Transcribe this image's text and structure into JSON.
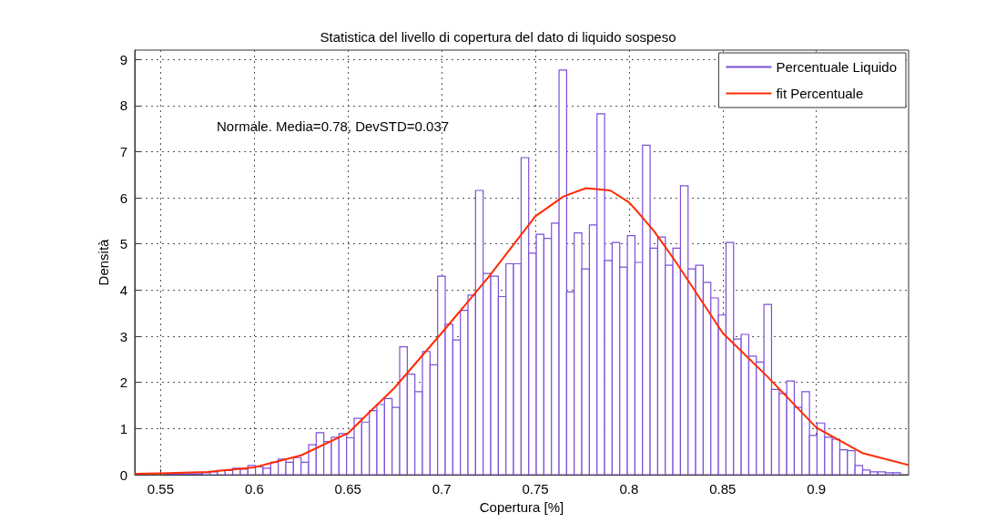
{
  "chart_data": {
    "type": "histogram",
    "title": "Statistica del livello di copertura del dato di liquido sospeso",
    "xlabel": "Copertura [%]",
    "ylabel": "Densità",
    "annotations": [
      "Normale. Media=0.78, DevSTD=0.037"
    ],
    "xlim": [
      0.5362,
      0.9492
    ],
    "ylim": [
      0,
      9.2
    ],
    "xticks": [
      0.55,
      0.6,
      0.65,
      0.7,
      0.75,
      0.8,
      0.85,
      0.9
    ],
    "yticks": [
      0,
      1,
      2,
      3,
      4,
      5,
      6,
      7,
      8,
      9
    ],
    "grid": true,
    "legend": "top right",
    "series": [
      {
        "name": "Percentuale Liquido",
        "color": "#7d4fd6",
        "bins": [
          0.5399,
          0.54395,
          0.548,
          0.55205,
          0.5561,
          0.56015,
          0.5642,
          0.56825,
          0.5723,
          0.57635,
          0.5804,
          0.58445,
          0.5885,
          0.59255,
          0.5966,
          0.60065,
          0.6047,
          0.60875,
          0.6128,
          0.61685,
          0.6209,
          0.62495,
          0.629,
          0.63305,
          0.6371,
          0.64115,
          0.6452,
          0.64925,
          0.6533,
          0.65735,
          0.6614,
          0.66545,
          0.6695,
          0.67355,
          0.6776,
          0.68165,
          0.6857,
          0.68975,
          0.6938,
          0.69785,
          0.7019,
          0.70595,
          0.71,
          0.71405,
          0.7181,
          0.72215,
          0.7262,
          0.73025,
          0.7343,
          0.73835,
          0.7424,
          0.74645,
          0.7505,
          0.75455,
          0.7586,
          0.76265,
          0.7667,
          0.77075,
          0.7748,
          0.77885,
          0.7829,
          0.78695,
          0.791,
          0.79505,
          0.7991,
          0.80315,
          0.8072,
          0.81125,
          0.8153,
          0.81935,
          0.8234,
          0.82745,
          0.8315,
          0.83555,
          0.8396,
          0.84365,
          0.8477,
          0.85175,
          0.8558,
          0.85985,
          0.8639,
          0.86795,
          0.872,
          0.87605,
          0.8801,
          0.88415,
          0.8882,
          0.89225,
          0.8963,
          0.90035,
          0.9044,
          0.90845,
          0.9125,
          0.91655,
          0.9206,
          0.92465,
          0.9287,
          0.93275,
          0.9368,
          0.94085,
          0.9449
        ],
        "values": [
          null,
          null,
          null,
          0.01,
          0.01,
          0.02,
          0.02,
          0.02,
          0.04,
          0.06,
          0.09,
          0.09,
          0.14,
          0.12,
          0.2,
          0.17,
          0.14,
          0.27,
          0.34,
          0.27,
          0.37,
          0.27,
          0.65,
          0.91,
          0.72,
          0.81,
          0.89,
          0.8,
          1.22,
          1.14,
          1.39,
          1.52,
          1.65,
          1.46,
          2.77,
          2.18,
          1.8,
          2.67,
          2.38,
          4.3,
          3.26,
          2.92,
          3.56,
          3.89,
          6.16,
          4.36,
          4.3,
          3.86,
          4.57,
          4.57,
          6.87,
          4.8,
          5.21,
          5.12,
          5.45,
          8.77,
          3.96,
          5.24,
          4.46,
          5.41,
          7.82,
          4.64,
          5.03,
          4.5,
          5.18,
          4.6,
          7.14,
          4.91,
          5.15,
          4.54,
          4.91,
          6.26,
          4.46,
          4.54,
          4.17,
          3.83,
          3.46,
          5.03,
          2.94,
          3.04,
          2.57,
          2.44,
          3.69,
          1.85,
          1.76,
          2.03,
          1.46,
          1.8,
          0.85,
          1.12,
          0.81,
          0.77,
          0.54,
          0.52,
          0.2,
          0.1,
          0.06,
          0.06,
          0.04,
          0.04
        ]
      },
      {
        "type": "line",
        "name": "fit Percentuale",
        "color": "#ff2a00",
        "x": [
          0.5362,
          0.55,
          0.575,
          0.6,
          0.625,
          0.65,
          0.675,
          0.7,
          0.725,
          0.75,
          0.765,
          0.777,
          0.79,
          0.8,
          0.8045,
          0.8135,
          0.825,
          0.85,
          0.874,
          0.9,
          0.9245,
          0.9492
        ],
        "values": [
          0.02,
          0.03,
          0.06,
          0.16,
          0.42,
          0.9,
          1.89,
          3.07,
          4.28,
          5.6,
          6.03,
          6.21,
          6.16,
          5.9,
          5.7,
          5.27,
          4.61,
          3.07,
          2.12,
          1.02,
          0.47,
          0.21
        ]
      }
    ]
  }
}
